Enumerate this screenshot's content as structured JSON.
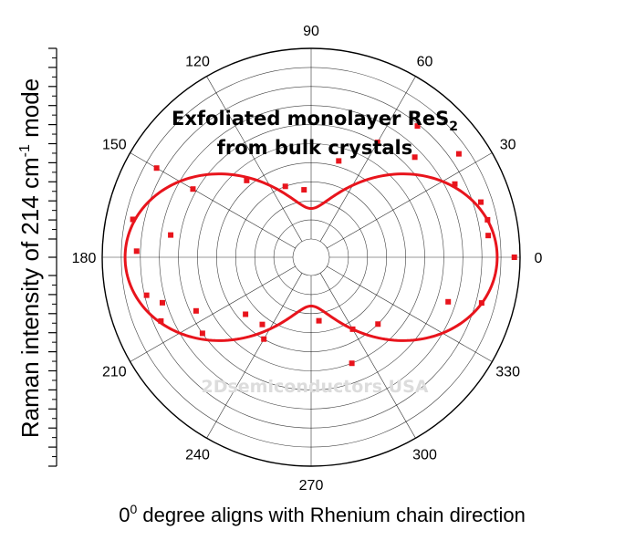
{
  "chart_data": {
    "type": "polar_scatter_with_fit",
    "title": {
      "line1_main": "Exfoliated monolayer ReS",
      "line1_sub": "2",
      "line2": "from bulk crystals"
    },
    "ylabel": {
      "before": "Raman intensity of 214 cm",
      "sup": "-1",
      "after": " mode"
    },
    "caption": {
      "before": "0",
      "sup": "0",
      "after": " degree aligns with Rhenium chain direction"
    },
    "watermark": "2Dsemiconductors USA",
    "angle_ticks": [
      0,
      30,
      60,
      90,
      120,
      150,
      180,
      210,
      240,
      270,
      300,
      330
    ],
    "angle_tick_labels": [
      "0",
      "30",
      "60",
      "90",
      "120",
      "150",
      "180",
      "210",
      "240",
      "270",
      "300",
      "330"
    ],
    "radial_range": [
      0,
      1
    ],
    "radial_grid_count": 10,
    "series": [
      {
        "kind": "scatter",
        "points": [
          {
            "theta": 0,
            "r": 0.97
          },
          {
            "theta": 7,
            "r": 0.84
          },
          {
            "theta": 12,
            "r": 0.85
          },
          {
            "theta": 18,
            "r": 0.84
          },
          {
            "theta": 27,
            "r": 0.75
          },
          {
            "theta": 35,
            "r": 0.85
          },
          {
            "theta": 44,
            "r": 0.66
          },
          {
            "theta": 51,
            "r": 0.79
          },
          {
            "theta": 60,
            "r": 0.6
          },
          {
            "theta": 74,
            "r": 0.43
          },
          {
            "theta": 96,
            "r": 0.26
          },
          {
            "theta": 110,
            "r": 0.3
          },
          {
            "theta": 130,
            "r": 0.43
          },
          {
            "theta": 150,
            "r": 0.84
          },
          {
            "theta": 150,
            "r": 0.62
          },
          {
            "theta": 168,
            "r": 0.86
          },
          {
            "theta": 171,
            "r": 0.65
          },
          {
            "theta": 178,
            "r": 0.82
          },
          {
            "theta": 193,
            "r": 0.79
          },
          {
            "theta": 197,
            "r": 0.72
          },
          {
            "theta": 203,
            "r": 0.76
          },
          {
            "theta": 205,
            "r": 0.57
          },
          {
            "theta": 215,
            "r": 0.6
          },
          {
            "theta": 221,
            "r": 0.36
          },
          {
            "theta": 234,
            "r": 0.34
          },
          {
            "theta": 240,
            "r": 0.4
          },
          {
            "theta": 277,
            "r": 0.24
          },
          {
            "theta": 291,
            "r": 0.5
          },
          {
            "theta": 300,
            "r": 0.34
          },
          {
            "theta": 315,
            "r": 0.4
          },
          {
            "theta": 342,
            "r": 0.66
          },
          {
            "theta": 345,
            "r": 0.83
          }
        ]
      },
      {
        "kind": "fit_curve",
        "model": "r = a + b*cos^2(theta)",
        "a": 0.16,
        "b": 0.72
      }
    ],
    "grid": true,
    "colors": {
      "data": "#e8141c",
      "grid": "#000000"
    }
  }
}
